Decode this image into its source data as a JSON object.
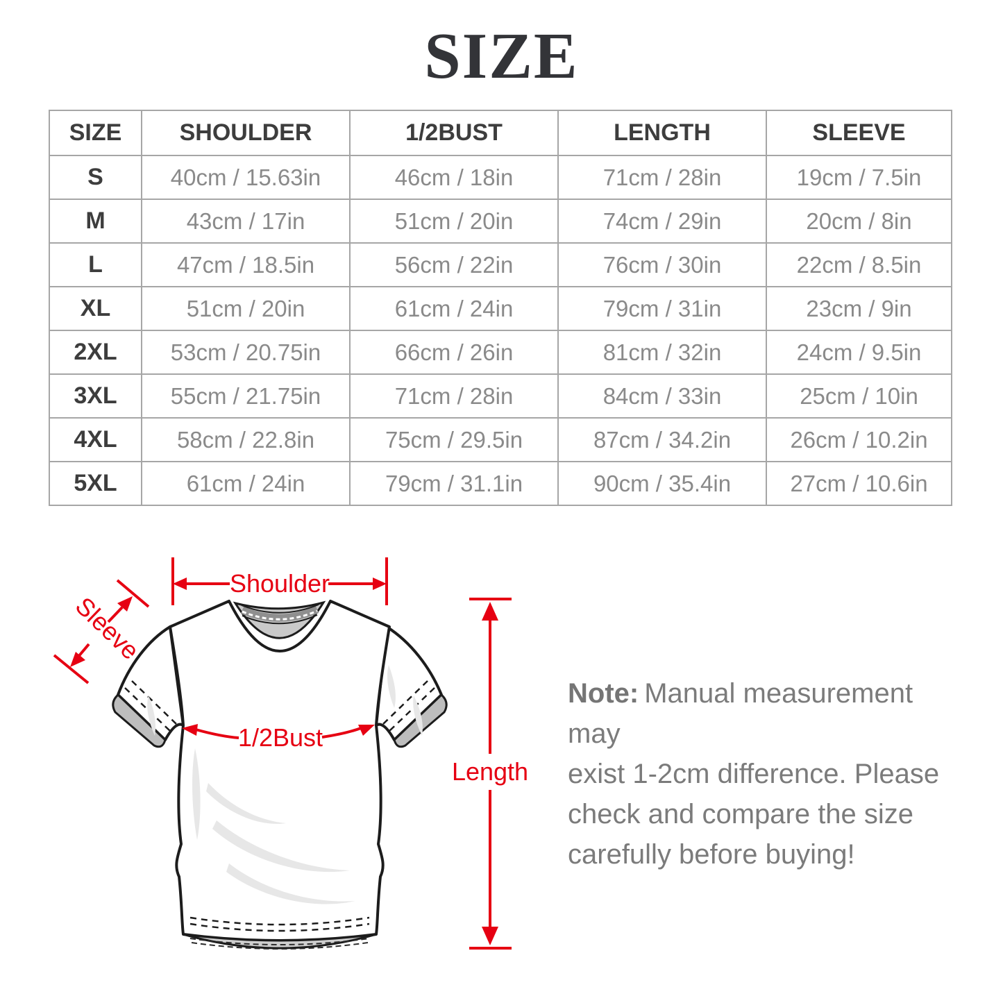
{
  "title": "SIZE",
  "table": {
    "headers": [
      "SIZE",
      "SHOULDER",
      "1/2BUST",
      "LENGTH",
      "SLEEVE"
    ],
    "rows": [
      [
        "S",
        "40cm / 15.63in",
        "46cm / 18in",
        "71cm / 28in",
        "19cm / 7.5in"
      ],
      [
        "M",
        "43cm / 17in",
        "51cm / 20in",
        "74cm / 29in",
        "20cm / 8in"
      ],
      [
        "L",
        "47cm / 18.5in",
        "56cm / 22in",
        "76cm / 30in",
        "22cm / 8.5in"
      ],
      [
        "XL",
        "51cm / 20in",
        "61cm / 24in",
        "79cm / 31in",
        "23cm / 9in"
      ],
      [
        "2XL",
        "53cm / 20.75in",
        "66cm / 26in",
        "81cm / 32in",
        "24cm / 9.5in"
      ],
      [
        "3XL",
        "55cm / 21.75in",
        "71cm / 28in",
        "84cm / 33in",
        "25cm / 10in"
      ],
      [
        "4XL",
        "58cm / 22.8in",
        "75cm / 29.5in",
        "87cm / 34.2in",
        "26cm / 10.2in"
      ],
      [
        "5XL",
        "61cm / 24in",
        "79cm / 31.1in",
        "90cm / 35.4in",
        "27cm / 10.6in"
      ]
    ]
  },
  "diagram": {
    "shoulder_label": "Shoulder",
    "sleeve_label": "Sleeve",
    "bust_label": "1/2Bust",
    "length_label": "Length",
    "accent_color": "#e60012"
  },
  "note": {
    "prefix": "Note:",
    "line1": "Manual measurement may",
    "line2": "exist 1-2cm difference. Please",
    "line3": "check and compare the size",
    "line4": "carefully before buying!"
  }
}
